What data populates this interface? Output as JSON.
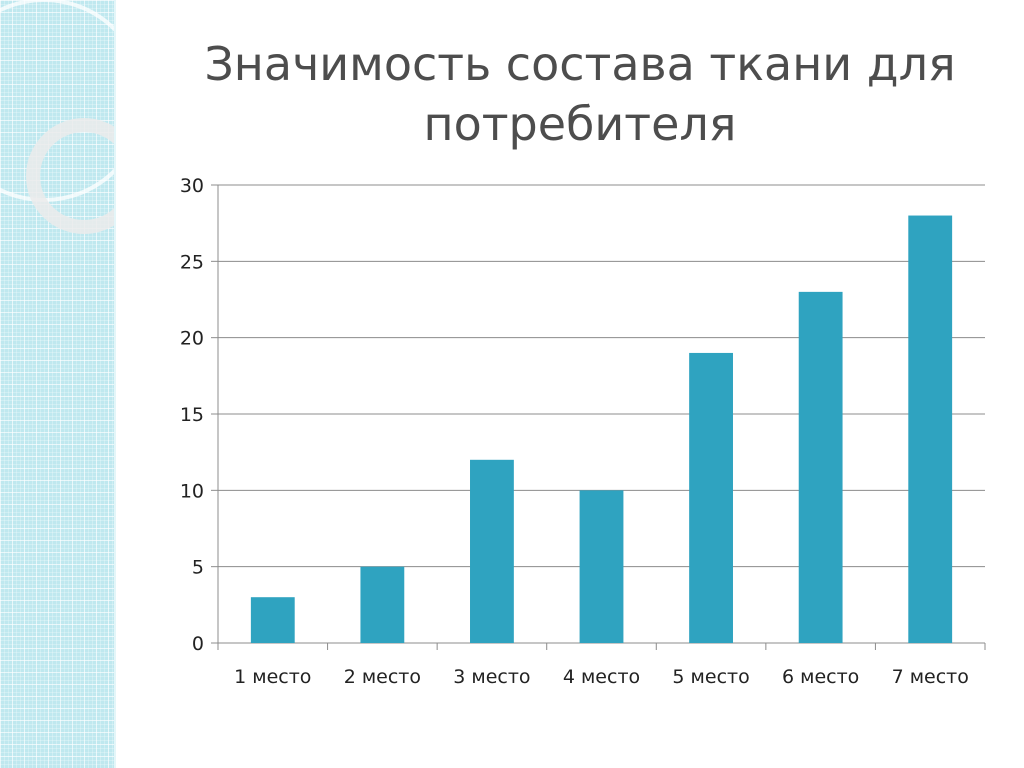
{
  "slide": {
    "title": "Значимость состава ткани для потребителя"
  },
  "colors": {
    "bar": "#2fa3c0",
    "grid": "#8c8c8c",
    "panel": "#bfe8ef"
  },
  "chart_data": {
    "type": "bar",
    "title": "",
    "xlabel": "",
    "ylabel": "",
    "categories": [
      "1 место",
      "2 место",
      "3 место",
      "4 место",
      "5 место",
      "6 место",
      "7 место"
    ],
    "values": [
      3,
      5,
      12,
      10,
      19,
      23,
      28
    ],
    "ylim": [
      0,
      30
    ],
    "yticks": [
      0,
      5,
      10,
      15,
      20,
      25,
      30
    ],
    "grid": true,
    "legend": "none"
  }
}
